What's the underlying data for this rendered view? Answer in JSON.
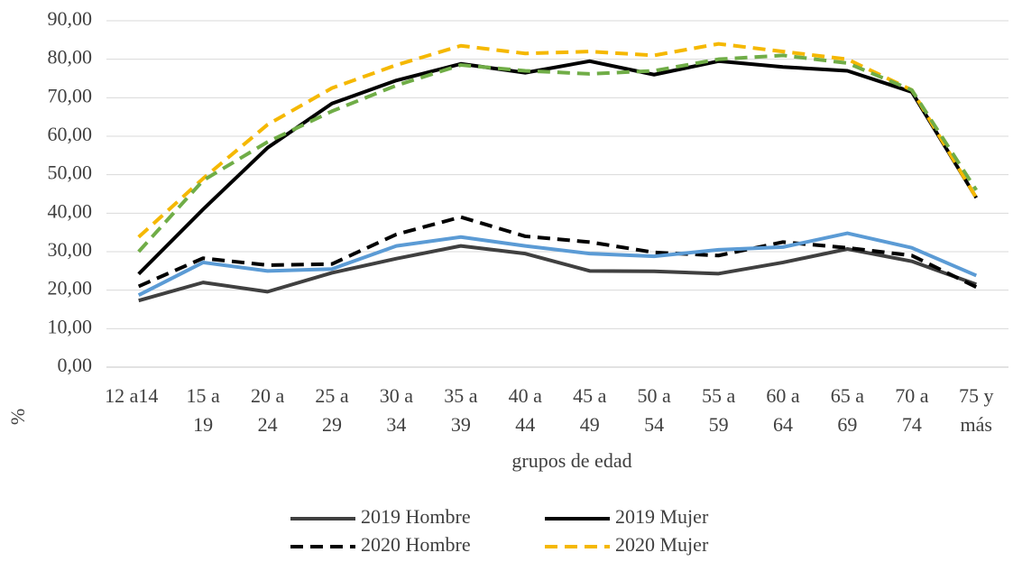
{
  "chart_data": {
    "type": "line",
    "x_label": "grupos de edad",
    "y_label": "%",
    "categories": [
      [
        "12 a14"
      ],
      [
        "15 a",
        "19"
      ],
      [
        "20 a",
        "24"
      ],
      [
        "25 a",
        "29"
      ],
      [
        "30 a",
        "34"
      ],
      [
        "35 a",
        "39"
      ],
      [
        "40 a",
        "44"
      ],
      [
        "45 a",
        "49"
      ],
      [
        "50 a",
        "54"
      ],
      [
        "55 a",
        "59"
      ],
      [
        "60 a",
        "64"
      ],
      [
        "65 a",
        "69"
      ],
      [
        "70 a",
        "74"
      ],
      [
        "75 y",
        "más"
      ]
    ],
    "ylim": [
      0,
      90
    ],
    "yticks": [
      {
        "value": 0,
        "label": "0,00"
      },
      {
        "value": 10,
        "label": "10,00"
      },
      {
        "value": 20,
        "label": "20,00"
      },
      {
        "value": 30,
        "label": "30,00"
      },
      {
        "value": 40,
        "label": "40,00"
      },
      {
        "value": 50,
        "label": "50,00"
      },
      {
        "value": 60,
        "label": "60,00"
      },
      {
        "value": 70,
        "label": "70,00"
      },
      {
        "value": 80,
        "label": "80,00"
      },
      {
        "value": 90,
        "label": "90,00"
      }
    ],
    "grid": true,
    "series": [
      {
        "name": "2019 Hombre",
        "color": "#404040",
        "dashed": false,
        "values": [
          17.3,
          22,
          19.6,
          24.5,
          28.2,
          31.5,
          29.5,
          25,
          24.9,
          24.3,
          27.2,
          30.7,
          27.5,
          21.5
        ]
      },
      {
        "name": "2019 Mujer",
        "color": "#000000",
        "dashed": false,
        "values": [
          24.2,
          41,
          57,
          68.5,
          74.5,
          78.8,
          76.5,
          79.5,
          76,
          79.5,
          78,
          77,
          71.5,
          44
        ]
      },
      {
        "name": "2020 Hombre",
        "color": "#000000",
        "dashed": true,
        "values": [
          21,
          28.3,
          26.5,
          26.8,
          34.5,
          39,
          34,
          32.5,
          29.8,
          29,
          32.5,
          31,
          29,
          20.8
        ]
      },
      {
        "name": "2020 Mujer",
        "color": "#f5b800",
        "dashed": true,
        "values": [
          33.8,
          49,
          63,
          72.5,
          78.5,
          83.5,
          81.5,
          82,
          81,
          84,
          82,
          80,
          72,
          44
        ]
      },
      {
        "color": "#5b9bd5",
        "dashed": false,
        "values": [
          18.7,
          27.2,
          25,
          25.5,
          31.5,
          33.8,
          31.5,
          29.5,
          28.8,
          30.5,
          31.2,
          34.8,
          31,
          23.8
        ]
      },
      {
        "color": "#70ad47",
        "dashed": true,
        "values": [
          30,
          48.5,
          58.5,
          66.5,
          73.2,
          78.5,
          77,
          76.2,
          77,
          80,
          81,
          79,
          72,
          46
        ]
      }
    ]
  }
}
